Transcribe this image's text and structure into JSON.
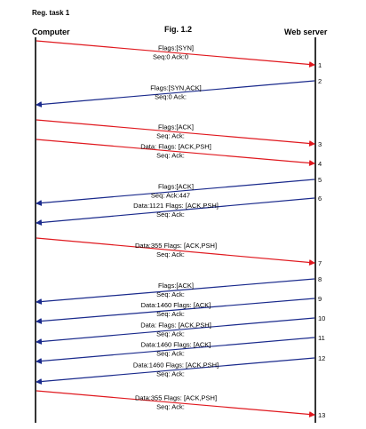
{
  "header": {
    "task": "Reg. task 1",
    "figure": "Fig. 1.2",
    "computer": "Computer",
    "server": "Web server"
  },
  "colors": {
    "to_server": "#e0191f",
    "to_computer": "#1a2a8c",
    "timeline": "#000000"
  },
  "messages": [
    {
      "id": 1,
      "dir": "right",
      "line1": "Flags:[SYN]",
      "line2": "Seq:0  Ack:0",
      "number": "1"
    },
    {
      "id": 2,
      "dir": "left",
      "line1": "Flags:[SYN,ACK]",
      "line2": "Seq:0  Ack:",
      "number": "2"
    },
    {
      "id": 3,
      "dir": "right",
      "line1": "Flags:[ACK]",
      "line2": "Seq:    Ack:",
      "number": "3"
    },
    {
      "id": 4,
      "dir": "right",
      "line1": "Data:            Flags: [ACK,PSH]",
      "line2": "Seq:    Ack:",
      "number": "4"
    },
    {
      "id": 5,
      "dir": "left",
      "line1": "Flags:[ACK]",
      "line2": "Seq:    Ack:447",
      "number": "5"
    },
    {
      "id": 6,
      "dir": "left",
      "line1": "Data:1121  Flags: [ACK,PSH]",
      "line2": "Seq:    Ack:",
      "number": "6"
    },
    {
      "id": 7,
      "dir": "right",
      "line1": "Data:355  Flags: [ACK,PSH]",
      "line2": "Seq:         Ack:",
      "number": "7"
    },
    {
      "id": 8,
      "dir": "left",
      "line1": "Flags:[ACK]",
      "line2": "Seq:       Ack:",
      "number": "8"
    },
    {
      "id": 9,
      "dir": "left",
      "line1": "Data:1460  Flags: [ACK]",
      "line2": "Seq:         Ack:",
      "number": "9"
    },
    {
      "id": 10,
      "dir": "left",
      "line1": "Data:          Flags: [ACK,PSH]",
      "line2": "Seq:         Ack:",
      "number": "10"
    },
    {
      "id": 11,
      "dir": "left",
      "line1": "Data:1460  Flags: [ACK]",
      "line2": "Seq:         Ack:",
      "number": "11"
    },
    {
      "id": 12,
      "dir": "left",
      "line1": "Data:1460  Flags: [ACK,PSH]",
      "line2": "Seq:         Ack:",
      "number": "12"
    },
    {
      "id": 13,
      "dir": "right",
      "line1": "Data:355  Flags: [ACK,PSH]",
      "line2": "Seq:         Ack:",
      "number": "13"
    }
  ]
}
